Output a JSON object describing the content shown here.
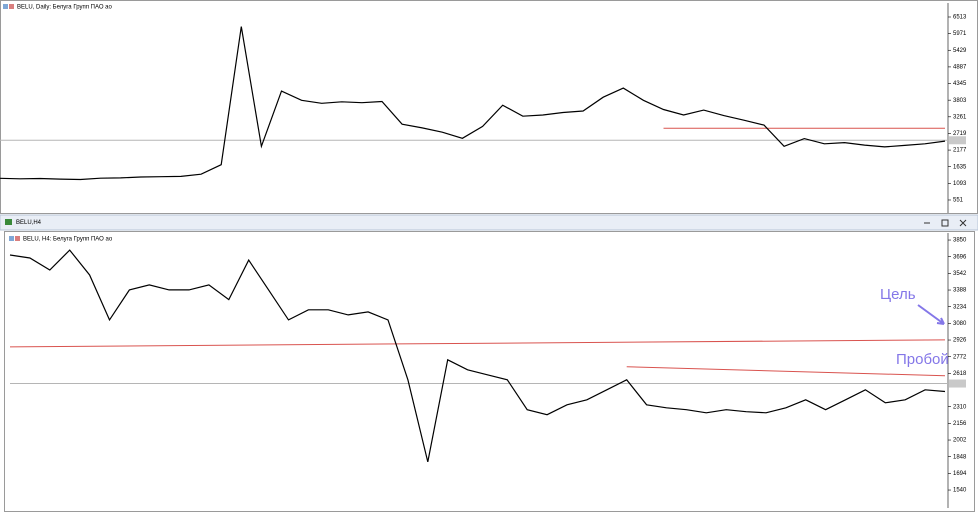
{
  "window_title": "BELU,H4",
  "chart_data": [
    {
      "type": "line",
      "title": "BELU, Daily: Белуга Групп ПАО ао",
      "color": "#000000",
      "values": [
        1256,
        1240,
        1250,
        1230,
        1220,
        1260,
        1270,
        1300,
        1310,
        1320,
        1390,
        1700,
        6200,
        2300,
        4100,
        3800,
        3700,
        3750,
        3720,
        3760,
        3020,
        2900,
        2760,
        2560,
        2950,
        3640,
        3280,
        3320,
        3400,
        3450,
        3900,
        4195,
        3800,
        3500,
        3320,
        3480,
        3300,
        3150,
        2990,
        2300,
        2550,
        2380,
        2420,
        2340,
        2280,
        2330,
        2380,
        2470
      ],
      "ylim": [
        127,
        6969
      ],
      "yticks": [
        6513,
        5971,
        5429,
        4887,
        4345,
        3803,
        3261,
        2719,
        2177,
        1635,
        1093,
        551
      ],
      "price_line": 2497,
      "trend_lines": [
        {
          "x": [
            33,
            47
          ],
          "values": [
            2889,
            2889
          ],
          "color": "#d9534f"
        }
      ]
    },
    {
      "type": "line",
      "title": "BELU, H4: Белуга Групп ПАО ао",
      "color": "#000000",
      "values": [
        3712,
        3684,
        3573,
        3757,
        3527,
        3112,
        3389,
        3435,
        3389,
        3389,
        3435,
        3300,
        3665,
        3389,
        3112,
        3205,
        3205,
        3158,
        3186,
        3112,
        2559,
        1800,
        2743,
        2651,
        2605,
        2559,
        2282,
        2236,
        2328,
        2374,
        2466,
        2559,
        2328,
        2300,
        2282,
        2254,
        2282,
        2264,
        2254,
        2300,
        2374,
        2282,
        2374,
        2466,
        2346,
        2374,
        2466,
        2450
      ],
      "ylim": [
        1374,
        3915
      ],
      "yticks": [
        3850,
        3696,
        3542,
        3388,
        3234,
        3080,
        2926,
        2772,
        2618,
        2310,
        2156,
        2002,
        1848,
        1694,
        1540
      ],
      "price_line": 2524,
      "trend_lines": [
        {
          "x": [
            0,
            47
          ],
          "values": [
            2863,
            2928
          ],
          "color": "#d9534f"
        },
        {
          "x": [
            31,
            47
          ],
          "values": [
            2679,
            2596
          ],
          "color": "#d9534f"
        }
      ],
      "annotations": [
        {
          "text": "Цель",
          "color": "#8477e8"
        },
        {
          "text": "Пробой",
          "color": "#8477e8"
        }
      ]
    }
  ]
}
